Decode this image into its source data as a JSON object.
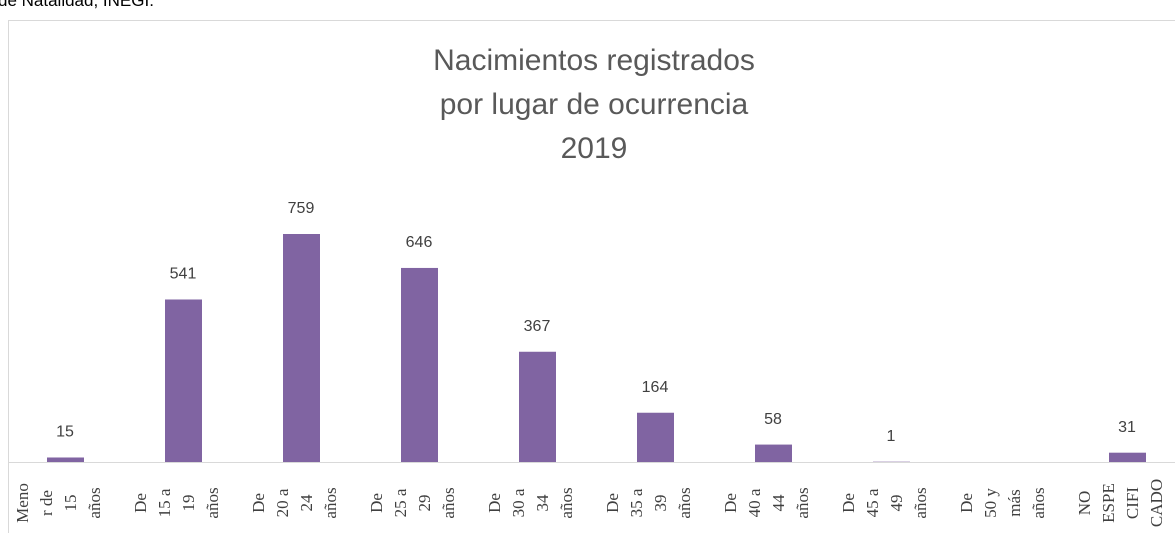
{
  "caption": "de Natalidad, INEGI.",
  "chart_data": {
    "type": "bar",
    "title": [
      "Nacimientos registrados",
      "por lugar de ocurrencia",
      "2019"
    ],
    "categories": [
      "Menor de 15 años",
      "De 15 a 19 años",
      "De 20 a 24 años",
      "De 25 a 29 años",
      "De 30 a 34 años",
      "De 35 a 39 años",
      "De 40 a 44 años",
      "De 45 a 49 años",
      "De 50 y más años",
      "NO ESPECIFICADO"
    ],
    "values": [
      15,
      541,
      759,
      646,
      367,
      164,
      58,
      1,
      null,
      31
    ],
    "color": "#8064a2"
  }
}
